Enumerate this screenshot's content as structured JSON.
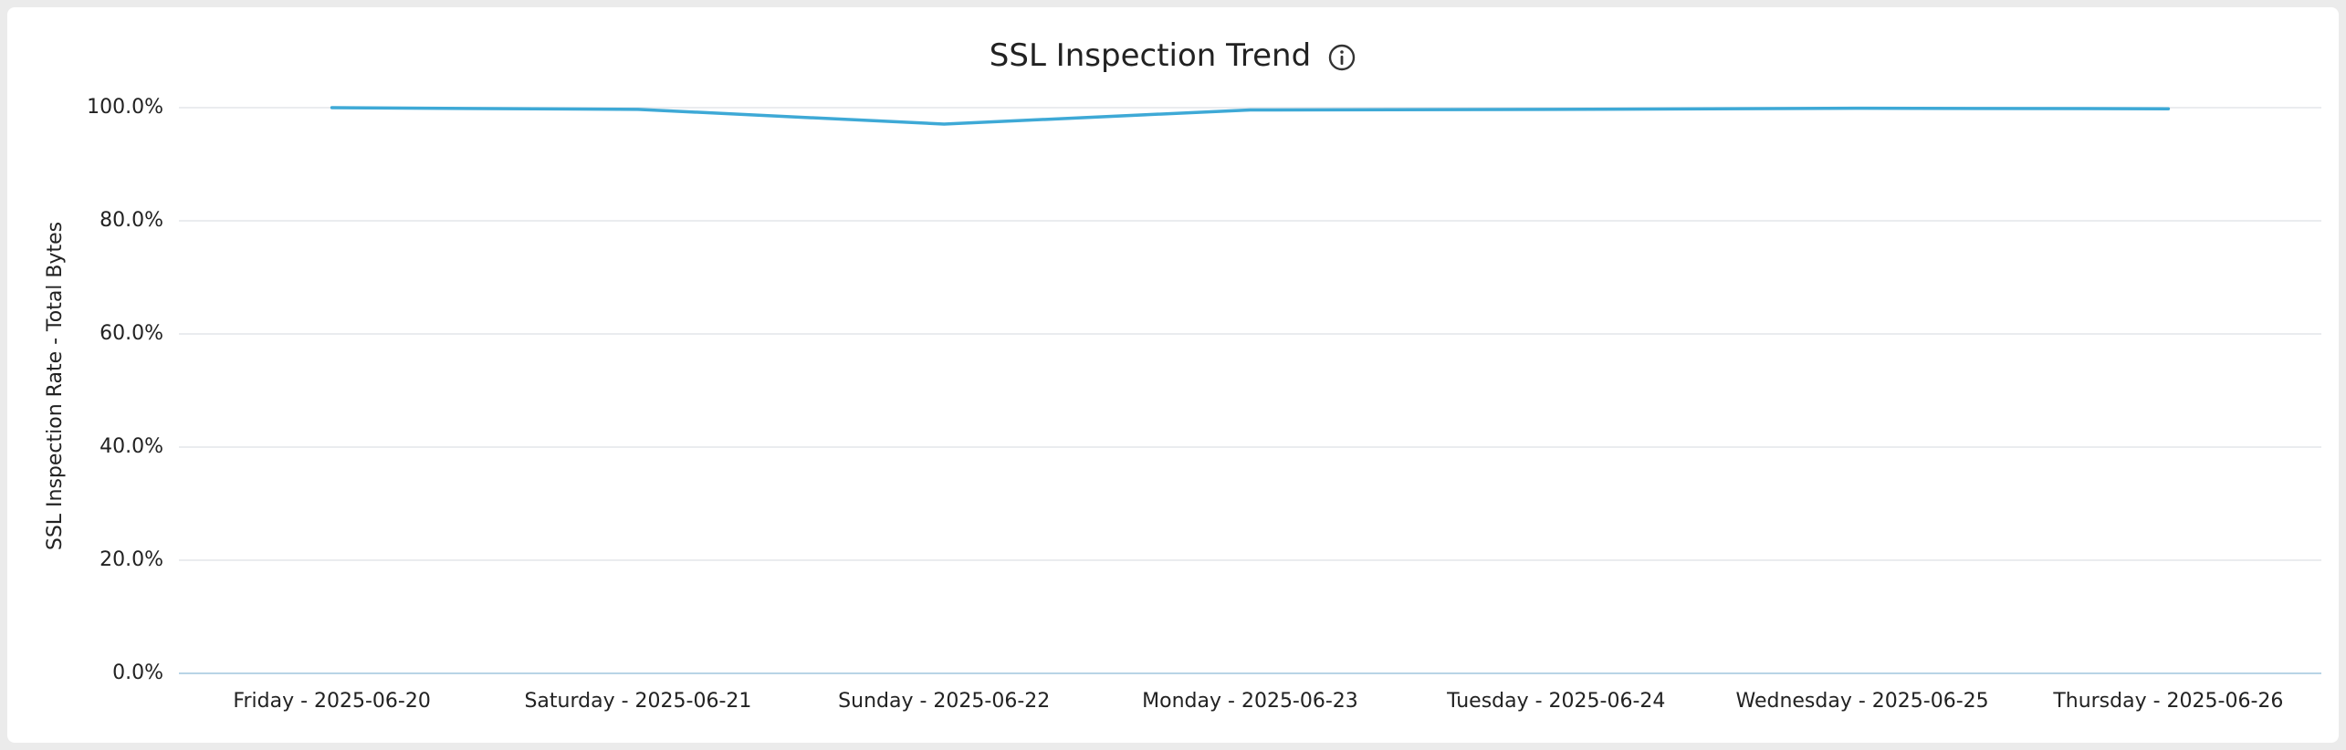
{
  "chart_data": {
    "type": "line",
    "title": "SSL Inspection Trend",
    "title_icon": "info-icon",
    "ylabel": "SSL Inspection Rate - Total Bytes",
    "xlabel": "",
    "categories": [
      "Friday - 2025-06-20",
      "Saturday - 2025-06-21",
      "Sunday - 2025-06-22",
      "Monday - 2025-06-23",
      "Tuesday - 2025-06-24",
      "Wednesday - 2025-06-25",
      "Thursday - 2025-06-26"
    ],
    "y_ticks": [
      "0.0%",
      "20.0%",
      "40.0%",
      "60.0%",
      "80.0%",
      "100.0%"
    ],
    "ylim": [
      0,
      100
    ],
    "series": [
      {
        "values": [
          100.0,
          99.7,
          97.1,
          99.6,
          99.7,
          99.9,
          99.8
        ],
        "color": "#3ea9d6"
      }
    ],
    "grid": true,
    "legend": "none"
  },
  "colors": {
    "line": "#3ea9d6",
    "grid": "#e3e6ea",
    "baseline": "#b8d4e6",
    "text": "#222222"
  }
}
